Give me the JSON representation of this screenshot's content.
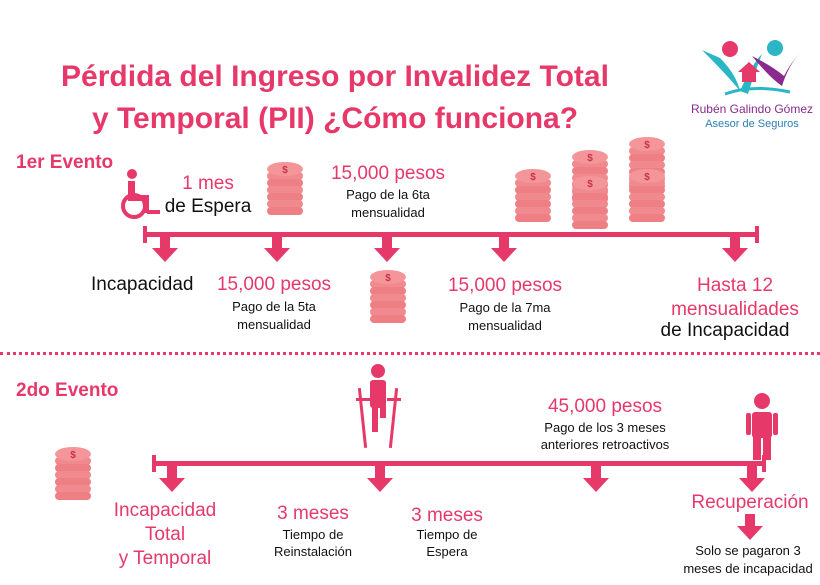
{
  "title_line1": "Pérdida del Ingreso por Invalidez Total",
  "title_line2": "y Temporal (PII) ¿Cómo funciona?",
  "brand": {
    "name": "Rubén Galindo Gómez",
    "tagline": "Asesor de Seguros"
  },
  "colors": {
    "accent": "#E6396A",
    "coin": "#F08A8E",
    "teal": "#2BB6C5",
    "purple": "#8A2A8E"
  },
  "event1": {
    "label": "1er Evento",
    "wait_amount": "1 mes",
    "wait_caption": "de Espera",
    "incapacity": "Incapacidad",
    "pay5_amount": "15,000 pesos",
    "pay5_line1": "Pago de la 5ta",
    "pay5_line2": "mensualidad",
    "pay6_amount": "15,000 pesos",
    "pay6_line1": "Pago de la 6ta",
    "pay6_line2": "mensualidad",
    "pay7_amount": "15,000 pesos",
    "pay7_line1": "Pago de la 7ma",
    "pay7_line2": "mensualidad",
    "max_line1": "Hasta 12",
    "max_line2": "mensualidades",
    "max_line3": "de Incapacidad"
  },
  "event2": {
    "label": "2do Evento",
    "incap_line1": "Incapacidad",
    "incap_line2": "Total",
    "incap_line3": "y Temporal",
    "reinst_amount": "3 meses",
    "reinst_line1": "Tiempo de",
    "reinst_line2": "Reinstalación",
    "wait_amount": "3 meses",
    "wait_line1": "Tiempo de",
    "wait_line2": "Espera",
    "retro_amount": "45,000 pesos",
    "retro_line1": "Pago de los 3 meses",
    "retro_line2": "anteriores retroactivos",
    "recovery": "Recuperación",
    "note_line1": "Solo se pagaron 3",
    "note_line2": "meses de incapacidad"
  }
}
